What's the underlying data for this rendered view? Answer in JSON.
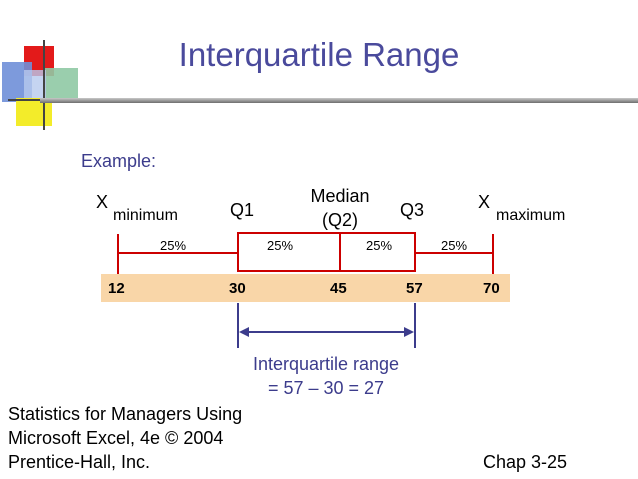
{
  "slide": {
    "title": "Interquartile Range",
    "example_label": "Example:"
  },
  "diagram": {
    "xmin_symbol": "X",
    "xmin_subscript": "minimum",
    "q1_label": "Q1",
    "median_line1": "Median",
    "median_line2": "(Q2)",
    "q3_label": "Q3",
    "xmax_symbol": "X",
    "xmax_subscript": "maximum",
    "percents": [
      "25%",
      "25%",
      "25%",
      "25%"
    ],
    "values": [
      "12",
      "30",
      "45",
      "57",
      "70"
    ],
    "iqr_line1": "Interquartile range",
    "iqr_line2": "= 57 – 30 = 27",
    "colors": {
      "box": "#cc0000",
      "bar": "#f9d6a8",
      "arrow": "#3c3c8c",
      "title": "#4a4a9c"
    }
  },
  "footer": {
    "source_line1": "Statistics for Managers Using",
    "source_line2": "Microsoft Excel, 4e © 2004",
    "source_line3": "Prentice-Hall, Inc.",
    "page": "Chap 3-25"
  }
}
